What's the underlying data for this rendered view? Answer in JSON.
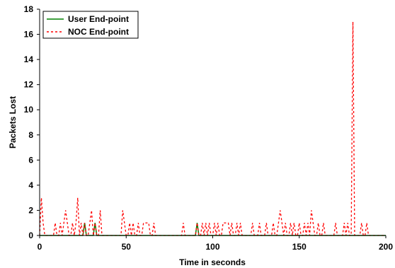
{
  "chart_data": {
    "type": "line",
    "title": "",
    "xlabel": "Time in seconds",
    "ylabel": "Packets Lost",
    "xlim": [
      0,
      200
    ],
    "ylim": [
      0,
      18
    ],
    "xticks": [
      0,
      50,
      100,
      150,
      200
    ],
    "yticks": [
      0,
      2,
      4,
      6,
      8,
      10,
      12,
      14,
      16,
      18
    ],
    "grid": false,
    "legend": "top-left",
    "series": [
      {
        "name": "User End-point",
        "color": "#008000",
        "dash": "solid",
        "x": [
          0,
          25,
          26,
          27,
          30,
          31,
          32,
          33,
          90,
          91,
          92,
          200
        ],
        "y": [
          0,
          0,
          1,
          0,
          0,
          0,
          1,
          0,
          0,
          1,
          0,
          0
        ]
      },
      {
        "name": "NOC End-point",
        "color": "#ff0000",
        "dash": "dashed",
        "x": [
          0,
          1,
          2,
          3,
          8,
          9,
          10,
          11,
          12,
          13,
          14,
          15,
          16,
          17,
          18,
          19,
          20,
          21,
          22,
          23,
          24,
          25,
          26,
          27,
          28,
          29,
          30,
          31,
          32,
          33,
          34,
          35,
          36,
          47,
          48,
          49,
          50,
          51,
          52,
          53,
          54,
          55,
          56,
          57,
          58,
          59,
          60,
          61,
          62,
          63,
          64,
          65,
          66,
          67,
          68,
          69,
          82,
          83,
          84,
          90,
          91,
          92,
          93,
          94,
          95,
          96,
          97,
          98,
          99,
          100,
          101,
          102,
          103,
          104,
          105,
          106,
          107,
          108,
          109,
          110,
          111,
          112,
          113,
          114,
          115,
          116,
          117,
          118,
          122,
          123,
          124,
          126,
          127,
          128,
          130,
          131,
          132,
          134,
          135,
          136,
          137,
          138,
          139,
          140,
          141,
          142,
          143,
          144,
          145,
          146,
          147,
          148,
          149,
          150,
          151,
          152,
          153,
          154,
          155,
          156,
          157,
          158,
          159,
          160,
          161,
          162,
          163,
          164,
          165,
          166,
          170,
          171,
          172,
          175,
          176,
          177,
          178,
          179,
          180,
          181,
          182,
          183,
          184,
          185,
          186,
          187,
          188,
          189,
          190,
          191,
          200
        ],
        "y": [
          0,
          3,
          1,
          0,
          0,
          1,
          0,
          0,
          1,
          0,
          1,
          2,
          1,
          0,
          0,
          1,
          0,
          1,
          3,
          0,
          1,
          0,
          1,
          0,
          0,
          1,
          2,
          0,
          1,
          0,
          0,
          2,
          0,
          0,
          2,
          1,
          0,
          0,
          1,
          0,
          1,
          0,
          0,
          1,
          0,
          0,
          1,
          1,
          1,
          1,
          0,
          0,
          1,
          0,
          0,
          0,
          0,
          1,
          0,
          0,
          1,
          0,
          0,
          1,
          0,
          1,
          0,
          1,
          0,
          0,
          1,
          0,
          1,
          0,
          0,
          1,
          1,
          1,
          1,
          0,
          1,
          0,
          0,
          1,
          0,
          1,
          0,
          0,
          0,
          1,
          0,
          0,
          1,
          0,
          0,
          1,
          0,
          0,
          1,
          0,
          0,
          1,
          2,
          1,
          0,
          1,
          0,
          0,
          1,
          0,
          1,
          0,
          0,
          1,
          0,
          0,
          1,
          0,
          1,
          0,
          2,
          1,
          0,
          0,
          1,
          0,
          0,
          1,
          0,
          0,
          0,
          1,
          0,
          0,
          1,
          0,
          1,
          0,
          0,
          17,
          0,
          0,
          0,
          0,
          1,
          0,
          0,
          1,
          0,
          0,
          0
        ]
      }
    ]
  }
}
